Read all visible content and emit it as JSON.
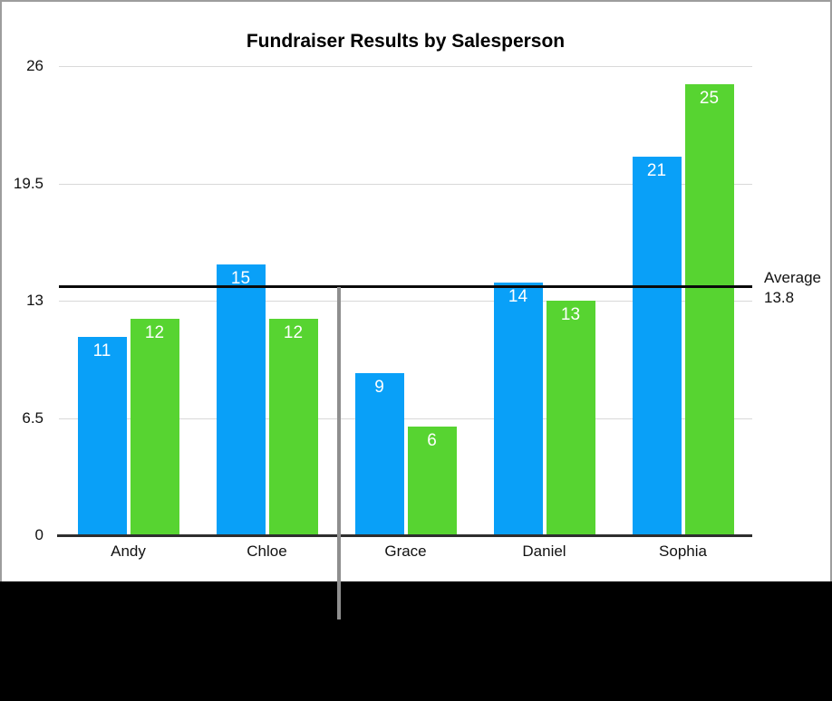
{
  "chart_data": {
    "type": "bar",
    "title": "Fundraiser Results by Salesperson",
    "categories": [
      "Andy",
      "Chloe",
      "Grace",
      "Daniel",
      "Sophia"
    ],
    "series": [
      {
        "name": "series-blue",
        "color": "#09a0f8",
        "values": [
          11,
          15,
          9,
          14,
          21
        ]
      },
      {
        "name": "series-green",
        "color": "#57d431",
        "values": [
          12,
          12,
          6,
          13,
          25
        ]
      }
    ],
    "y_ticks": [
      0,
      6.5,
      13,
      19.5,
      26
    ],
    "y_tick_labels": [
      "0",
      "6.5",
      "13",
      "19.5",
      "26"
    ],
    "ylim": [
      0,
      26
    ],
    "grid": true,
    "legend_position": "none",
    "xlabel": "",
    "ylabel": "",
    "average_line": {
      "value": 13.8,
      "label_line1": "Average",
      "label_line2": "13.8",
      "color": "#0a0a0a"
    }
  },
  "colors": {
    "grid": "#d9d9d9",
    "axis": "#2e2e2e",
    "frame_border": "#9d9d9d",
    "guide_line": "#8f8f8f",
    "bottom_band": "#000000",
    "value_label_text": "#ffffff"
  }
}
